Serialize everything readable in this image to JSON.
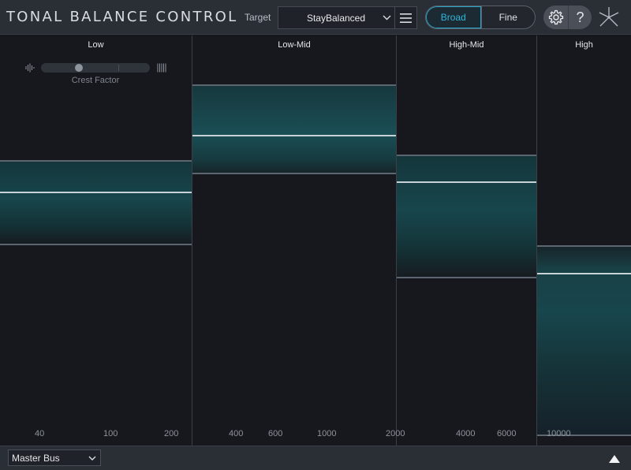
{
  "header": {
    "title": "TONAL BALANCE CONTROL",
    "target_label": "Target",
    "target_value": "StayBalanced",
    "view_broad": "Broad",
    "view_fine": "Fine",
    "active_view": "Broad",
    "help_glyph": "?"
  },
  "bands": [
    {
      "title": "Low",
      "freqs": [
        "40",
        "100",
        "200"
      ]
    },
    {
      "title": "Low-Mid",
      "freqs": [
        "400",
        "600",
        "1000"
      ]
    },
    {
      "title": "High-Mid",
      "freqs": [
        "2000",
        "4000",
        "6000"
      ]
    },
    {
      "title": "High",
      "freqs": [
        "10000"
      ]
    }
  ],
  "crest_factor": {
    "label": "Crest Factor",
    "value": 0.33
  },
  "footer": {
    "bus_value": "Master Bus"
  },
  "colors": {
    "accent": "#2fb6d9",
    "range_fill": "#17464c",
    "target_line": "#c7d2d6"
  },
  "icons": [
    "chevron-down-icon",
    "hamburger-menu-icon",
    "gear-icon",
    "help-icon",
    "logo-icon",
    "triangle-up-icon"
  ]
}
